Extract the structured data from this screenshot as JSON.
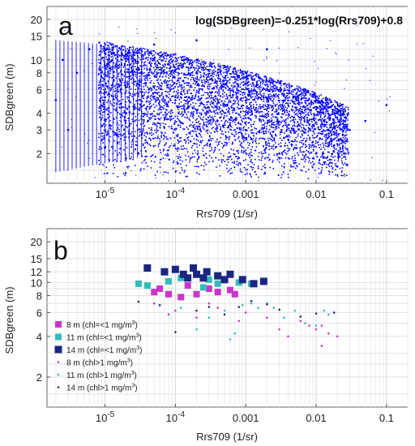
{
  "chart_data": [
    {
      "panel_label": "a",
      "type": "scatter",
      "title": "",
      "annotation": "log(SDBgreen)=-0.251*log(Rrs709)+0.8",
      "xlabel": "Rrs709 (1/sr)",
      "ylabel": "SDBgreen (m)",
      "x_scale": "log",
      "y_scale": "log",
      "xlim": [
        1.5e-06,
        0.2
      ],
      "ylim": [
        1.2,
        25
      ],
      "x_ticks": [
        {
          "value": 1e-05,
          "base": "10",
          "exp": "-5"
        },
        {
          "value": 0.0001,
          "base": "10",
          "exp": "-4"
        },
        {
          "value": 0.001,
          "label": "0.001"
        },
        {
          "value": 0.01,
          "label": "0.01"
        },
        {
          "value": 0.1,
          "label": "0.1"
        }
      ],
      "y_ticks": [
        {
          "value": 2,
          "label": "2"
        },
        {
          "value": 3,
          "label": "3"
        },
        {
          "value": 4,
          "label": "4"
        },
        {
          "value": 6,
          "label": "6"
        },
        {
          "value": 8,
          "label": "8"
        },
        {
          "value": 10,
          "label": "10"
        },
        {
          "value": 15,
          "label": "15"
        },
        {
          "value": 20,
          "label": "20"
        }
      ],
      "grid": true,
      "point_color": "#0000ff",
      "points": [
        [
          2.5e-06,
          10
        ],
        [
          4e-06,
          8
        ],
        [
          6e-06,
          12
        ],
        [
          1e-05,
          9
        ],
        [
          2e-05,
          11
        ],
        [
          5e-05,
          10
        ],
        [
          0.0001,
          11
        ],
        [
          0.0002,
          10
        ],
        [
          0.0005,
          9
        ],
        [
          0.001,
          8
        ],
        [
          0.002,
          7
        ],
        [
          0.005,
          6
        ],
        [
          0.01,
          5
        ],
        [
          0.02,
          4
        ],
        [
          0.03,
          3
        ],
        [
          3e-06,
          3
        ],
        [
          2e-05,
          4
        ],
        [
          0.0001,
          5
        ],
        [
          0.001,
          3
        ],
        [
          0.01,
          2
        ],
        [
          3e-05,
          2
        ],
        [
          0.0003,
          2.5
        ],
        [
          0.003,
          2
        ],
        [
          0.02,
          1.6
        ],
        [
          0.05,
          3.5
        ],
        [
          0.1,
          4.6
        ],
        [
          2e-06,
          5
        ],
        [
          0.0002,
          14
        ],
        [
          5e-05,
          13
        ],
        [
          0.002,
          12
        ]
      ]
    },
    {
      "panel_label": "b",
      "type": "scatter",
      "title": "",
      "xlabel": "Rrs709 (1/sr)",
      "ylabel": "SDBgreen (m)",
      "x_scale": "log",
      "y_scale": "log",
      "xlim": [
        1.5e-06,
        0.2
      ],
      "ylim": [
        1.2,
        25
      ],
      "x_ticks": [
        {
          "value": 1e-05,
          "base": "10",
          "exp": "-5"
        },
        {
          "value": 0.0001,
          "base": "10",
          "exp": "-4"
        },
        {
          "value": 0.001,
          "label": "0.001"
        },
        {
          "value": 0.01,
          "label": "0.01"
        },
        {
          "value": 0.1,
          "label": "0.1"
        }
      ],
      "y_ticks": [
        {
          "value": 2,
          "label": "2"
        },
        {
          "value": 4,
          "label": "4"
        },
        {
          "value": 6,
          "label": "6"
        },
        {
          "value": 8,
          "label": "8"
        },
        {
          "value": 10,
          "label": "10"
        },
        {
          "value": 12,
          "label": "12"
        },
        {
          "value": 15,
          "label": "15"
        },
        {
          "value": 20,
          "label": "20"
        }
      ],
      "grid": true,
      "legend_position": "bottom-left",
      "series": [
        {
          "name": "8 m (chl=<1 mg/m3)",
          "label_main": "8 m (chl=<1 mg/m",
          "label_sup": "3",
          "label_end": ")",
          "marker": "square-medium",
          "color": "#cc33cc",
          "points": [
            [
              5e-05,
              8.5
            ],
            [
              6e-05,
              9
            ],
            [
              8e-05,
              8.2
            ],
            [
              0.00015,
              9.5
            ],
            [
              0.0002,
              8.2
            ],
            [
              0.0004,
              8.5
            ],
            [
              0.0006,
              8.8
            ],
            [
              0.0007,
              8.2
            ],
            [
              0.00012,
              7.8
            ],
            [
              0.0003,
              9
            ]
          ]
        },
        {
          "name": "11 m (chl=<1 mg/m3)",
          "label_main": "11 m (chl=<1 mg/m",
          "label_sup": "3",
          "label_end": ")",
          "marker": "square-medium",
          "color": "#33bbbb",
          "points": [
            [
              3e-05,
              9.8
            ],
            [
              4e-05,
              9.5
            ],
            [
              8e-05,
              10.2
            ],
            [
              0.00012,
              10.8
            ],
            [
              0.0003,
              10.5
            ],
            [
              0.0004,
              9.8
            ],
            [
              0.0008,
              10
            ],
            [
              0.0012,
              9.8
            ],
            [
              0.00025,
              9.2
            ],
            [
              0.0005,
              10.5
            ]
          ]
        },
        {
          "name": "14 m (chl=<1 mg/m3)",
          "label_main": "14 m (chl=<1 mg/m",
          "label_sup": "3",
          "label_end": ")",
          "marker": "square-large",
          "color": "#1a2680",
          "points": [
            [
              4e-05,
              12.8
            ],
            [
              7e-05,
              12
            ],
            [
              0.0001,
              12.5
            ],
            [
              0.00013,
              11.5
            ],
            [
              0.00018,
              12.8
            ],
            [
              0.0002,
              11.5
            ],
            [
              0.00025,
              10.8
            ],
            [
              0.00028,
              12
            ],
            [
              0.0004,
              11.2
            ],
            [
              0.0005,
              10.5
            ],
            [
              0.0006,
              11.5
            ],
            [
              0.0009,
              10.5
            ],
            [
              0.0013,
              9.8
            ],
            [
              0.0018,
              10.2
            ],
            [
              0.00015,
              10.8
            ]
          ]
        },
        {
          "name": "8 m (chl>1 mg/m3)",
          "label_main": "8 m (chl>1 mg/m",
          "label_sup": "3",
          "label_end": ")",
          "marker": "dot",
          "color": "#cc33cc",
          "points": [
            [
              5e-05,
              7
            ],
            [
              0.0001,
              6.2
            ],
            [
              0.0002,
              5.5
            ],
            [
              0.0004,
              6.5
            ],
            [
              0.0008,
              5.2
            ],
            [
              0.001,
              6
            ],
            [
              0.002,
              5.5
            ],
            [
              0.003,
              4.5
            ],
            [
              0.004,
              4
            ],
            [
              0.006,
              5.2
            ],
            [
              0.008,
              4.8
            ],
            [
              0.01,
              4.5
            ],
            [
              0.012,
              4.8
            ],
            [
              0.015,
              4.2
            ],
            [
              0.02,
              4
            ],
            [
              0.012,
              3.4
            ],
            [
              8e-05,
              5.8
            ],
            [
              0.0003,
              7
            ]
          ]
        },
        {
          "name": "11 m (chl>1 mg/m3)",
          "label_main": "11 m (chl>1 mg/m",
          "label_sup": "3",
          "label_end": ")",
          "marker": "dot",
          "color": "#33bbbb",
          "points": [
            [
              0.00012,
              6.5
            ],
            [
              0.0002,
              4.5
            ],
            [
              0.0003,
              5.5
            ],
            [
              0.0005,
              6.2
            ],
            [
              0.0007,
              4.2
            ],
            [
              0.0009,
              6.8
            ],
            [
              0.0012,
              7
            ],
            [
              0.0015,
              6.5
            ],
            [
              0.002,
              7
            ],
            [
              0.0025,
              6.5
            ],
            [
              0.0035,
              5.5
            ],
            [
              0.005,
              6.2
            ],
            [
              0.007,
              5
            ],
            [
              0.01,
              4.8
            ],
            [
              0.013,
              6.2
            ],
            [
              0.015,
              5.8
            ],
            [
              0.0006,
              3.8
            ]
          ]
        },
        {
          "name": "14 m (chl>1 mg/m3)",
          "label_main": "14 m (chl>1 mg/m",
          "label_sup": "3",
          "label_end": ")",
          "marker": "dot",
          "color": "#1a2680",
          "points": [
            [
              3e-05,
              7.2
            ],
            [
              6e-05,
              6.8
            ],
            [
              0.0001,
              4.3
            ],
            [
              0.0003,
              6.6
            ],
            [
              0.0005,
              5.8
            ],
            [
              0.0008,
              6.6
            ],
            [
              0.0012,
              7.3
            ],
            [
              0.002,
              6.9
            ],
            [
              0.003,
              6.3
            ],
            [
              0.006,
              5.6
            ],
            [
              0.01,
              5.9
            ],
            [
              0.018,
              6
            ],
            [
              0.0002,
              6.2
            ]
          ]
        }
      ]
    }
  ]
}
